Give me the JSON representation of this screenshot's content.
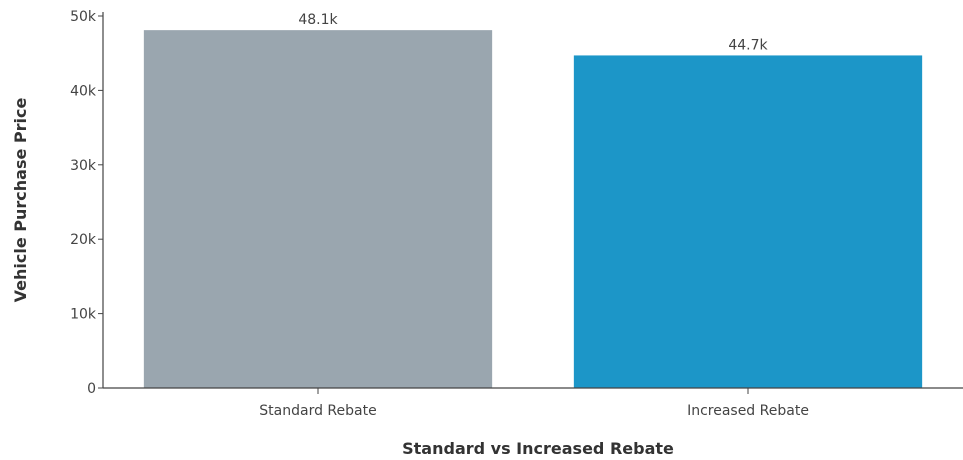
{
  "chart_data": {
    "type": "bar",
    "categories": [
      "Standard Rebate",
      "Increased Rebate"
    ],
    "values": [
      48100,
      44700
    ],
    "data_labels": [
      "48.1k",
      "44.7k"
    ],
    "colors": [
      "#9aa6af",
      "#1c96c8"
    ],
    "title": "",
    "xlabel": "Standard vs Increased Rebate",
    "ylabel": "Vehicle Purchase Price",
    "ylim": [
      0,
      50000
    ],
    "yticks": [
      0,
      10000,
      20000,
      30000,
      40000,
      50000
    ],
    "ytick_labels": [
      "0",
      "10k",
      "20k",
      "30k",
      "40k",
      "50k"
    ],
    "grid": false,
    "legend": "none"
  }
}
